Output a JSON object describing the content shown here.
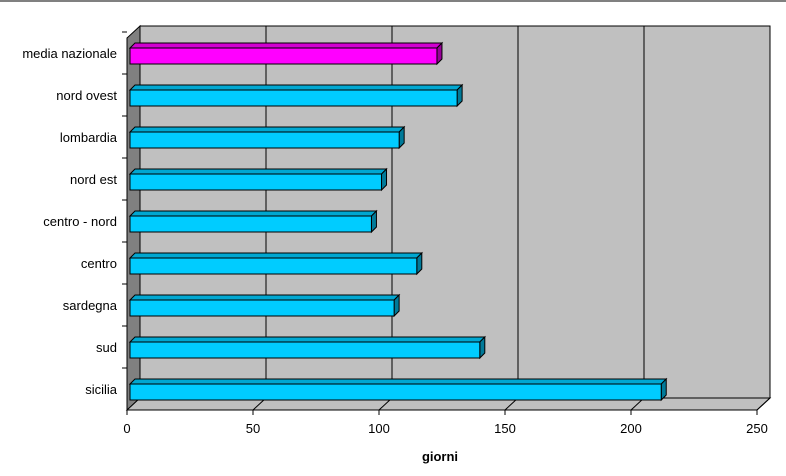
{
  "chart_data": {
    "type": "bar",
    "orientation": "horizontal",
    "categories": [
      "media nazionale",
      "nord ovest",
      "lombardia",
      "nord est",
      "centro - nord",
      "centro",
      "sardegna",
      "sud",
      "sicilia"
    ],
    "values": [
      123,
      131,
      108,
      101,
      97,
      115,
      106,
      140,
      212
    ],
    "bar_colors": [
      "#ff00ff",
      "#00ccff",
      "#00ccff",
      "#00ccff",
      "#00ccff",
      "#00ccff",
      "#00ccff",
      "#00ccff",
      "#00ccff"
    ],
    "xticks": [
      0,
      50,
      100,
      150,
      200,
      250
    ],
    "xlim": [
      0,
      250
    ],
    "xlabel": "giorni",
    "ylabel": "",
    "title": "",
    "grid": "vertical",
    "legend": "none",
    "plot_background": "#c0c0c0"
  }
}
